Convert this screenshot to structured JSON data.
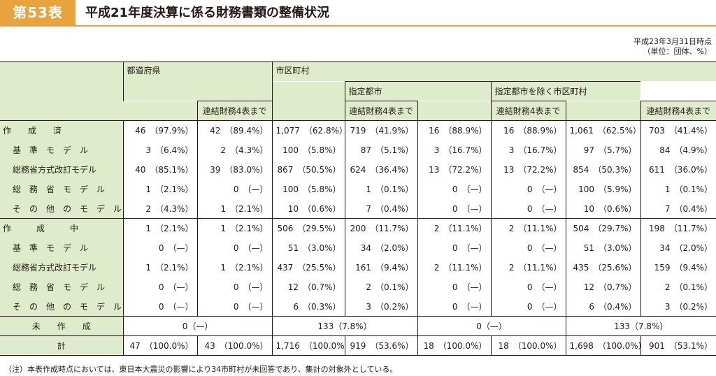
{
  "header": {
    "badge": "第53表",
    "title": "平成21年度決算に係る財務書類の整備状況"
  },
  "meta": {
    "date": "平成23年3月31日時点",
    "unit": "（単位：団体、%）"
  },
  "table": {
    "col_prefectures": "都道府県",
    "col_municipalities": "市区町村",
    "col_designated": "指定都市",
    "col_non_designated": "指定都市を除く市区町村",
    "col_consolidated": "連結財務4表まで",
    "rows": [
      {
        "label": "作　　成　　済",
        "kind": "cat",
        "c": [
          [
            "46",
            "（97.9%）"
          ],
          [
            "42",
            "（89.4%）"
          ],
          [
            "1,077",
            "（62.8%）"
          ],
          [
            "719",
            "（41.9%）"
          ],
          [
            "16",
            "（88.9%）"
          ],
          [
            "16",
            "（88.9%）"
          ],
          [
            "1,061",
            "（62.5%）"
          ],
          [
            "703",
            "（41.4%）"
          ]
        ]
      },
      {
        "label": "基　準　モ　デ　ル",
        "kind": "sub",
        "c": [
          [
            "3",
            "（6.4%）"
          ],
          [
            "2",
            "（4.3%）"
          ],
          [
            "100",
            "（5.8%）"
          ],
          [
            "87",
            "（5.1%）"
          ],
          [
            "3",
            "（16.7%）"
          ],
          [
            "3",
            "（16.7%）"
          ],
          [
            "97",
            "（5.7%）"
          ],
          [
            "84",
            "（4.9%）"
          ]
        ]
      },
      {
        "label": "総務省方式改訂モデル",
        "kind": "sub",
        "c": [
          [
            "40",
            "（85.1%）"
          ],
          [
            "39",
            "（83.0%）"
          ],
          [
            "867",
            "（50.5%）"
          ],
          [
            "624",
            "（36.4%）"
          ],
          [
            "13",
            "（72.2%）"
          ],
          [
            "13",
            "（72.2%）"
          ],
          [
            "854",
            "（50.3%）"
          ],
          [
            "611",
            "（36.0%）"
          ]
        ]
      },
      {
        "label": "総　務　省　モ　デ　ル",
        "kind": "sub",
        "c": [
          [
            "1",
            "（2.1%）"
          ],
          [
            "0",
            "（—）"
          ],
          [
            "100",
            "（5.8%）"
          ],
          [
            "1",
            "（0.1%）"
          ],
          [
            "0",
            "（—）"
          ],
          [
            "0",
            "（—）"
          ],
          [
            "100",
            "（5.9%）"
          ],
          [
            "1",
            "（0.1%）"
          ]
        ]
      },
      {
        "label": "そ　の　他　の　モ　デ　ル",
        "kind": "sub",
        "c": [
          [
            "2",
            "（4.3%）"
          ],
          [
            "1",
            "（2.1%）"
          ],
          [
            "10",
            "（0.6%）"
          ],
          [
            "7",
            "（0.4%）"
          ],
          [
            "0",
            "（—）"
          ],
          [
            "0",
            "（—）"
          ],
          [
            "10",
            "（0.6%）"
          ],
          [
            "7",
            "（0.4%）"
          ]
        ]
      },
      {
        "label": "作　　　成　　　中",
        "kind": "cat",
        "c": [
          [
            "1",
            "（2.1%）"
          ],
          [
            "1",
            "（2.1%）"
          ],
          [
            "506",
            "（29.5%）"
          ],
          [
            "200",
            "（11.7%）"
          ],
          [
            "2",
            "（11.1%）"
          ],
          [
            "2",
            "（11.1%）"
          ],
          [
            "504",
            "（29.7%）"
          ],
          [
            "198",
            "（11.7%）"
          ]
        ]
      },
      {
        "label": "基　準　モ　デ　ル",
        "kind": "sub",
        "c": [
          [
            "0",
            "（—）"
          ],
          [
            "0",
            "（—）"
          ],
          [
            "51",
            "（3.0%）"
          ],
          [
            "34",
            "（2.0%）"
          ],
          [
            "0",
            "（—）"
          ],
          [
            "0",
            "（—）"
          ],
          [
            "51",
            "（3.0%）"
          ],
          [
            "34",
            "（2.0%）"
          ]
        ]
      },
      {
        "label": "総務省方式改訂モデル",
        "kind": "sub",
        "c": [
          [
            "1",
            "（2.1%）"
          ],
          [
            "1",
            "（2.1%）"
          ],
          [
            "437",
            "（25.5%）"
          ],
          [
            "161",
            "（9.4%）"
          ],
          [
            "2",
            "（11.1%）"
          ],
          [
            "2",
            "（11.1%）"
          ],
          [
            "435",
            "（25.6%）"
          ],
          [
            "159",
            "（9.4%）"
          ]
        ]
      },
      {
        "label": "総　務　省　モ　デ　ル",
        "kind": "sub",
        "c": [
          [
            "0",
            "（—）"
          ],
          [
            "0",
            "（—）"
          ],
          [
            "12",
            "（0.7%）"
          ],
          [
            "2",
            "（0.1%）"
          ],
          [
            "0",
            "（—）"
          ],
          [
            "0",
            "（—）"
          ],
          [
            "12",
            "（0.7%）"
          ],
          [
            "2",
            "（0.1%）"
          ]
        ]
      },
      {
        "label": "そ　の　他　の　モ　デ　ル",
        "kind": "sub",
        "c": [
          [
            "0",
            "（—）"
          ],
          [
            "0",
            "（—）"
          ],
          [
            "6",
            "（0.3%）"
          ],
          [
            "3",
            "（0.2%）"
          ],
          [
            "0",
            "（—）"
          ],
          [
            "0",
            "（—）"
          ],
          [
            "6",
            "（0.4%）"
          ],
          [
            "3",
            "（0.2%）"
          ]
        ]
      }
    ],
    "uncreated": {
      "label": "未　　作　　成",
      "prefectures": "0（—）",
      "municipalities": "133（7.8%）",
      "designated": "0（—）",
      "non_designated": "133（7.8%）"
    },
    "total": {
      "label": "計",
      "c": [
        [
          "47",
          "（100.0%）"
        ],
        [
          "43",
          "（100.0%）"
        ],
        [
          "1,716",
          "（100.0%）"
        ],
        [
          "919",
          "（53.6%）"
        ],
        [
          "18",
          "（100.0%）"
        ],
        [
          "18",
          "（100.0%）"
        ],
        [
          "1,698",
          "（100.0%）"
        ],
        [
          "901",
          "（53.1%）"
        ]
      ]
    }
  },
  "note": "（注）本表作成時点においては、東日本大震災の影響により34市町村が未回答であり、集計の対象外としている。"
}
